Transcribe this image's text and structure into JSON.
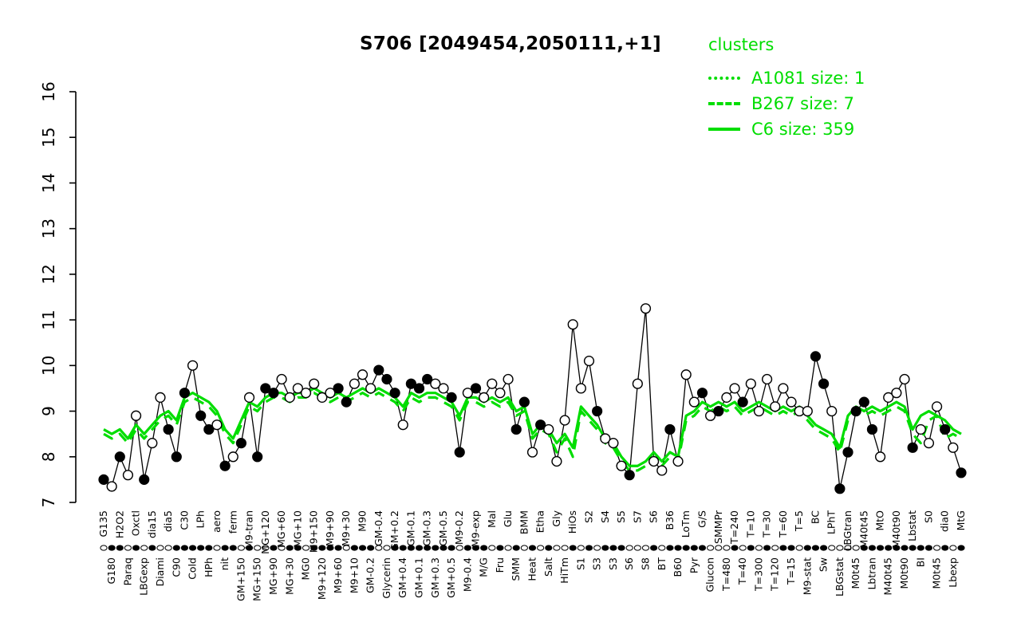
{
  "title": "S706 [2049454,2050111,+1]",
  "legend": {
    "title": "clusters",
    "entries": [
      {
        "label": "A1081 size: 1",
        "style": "dotted"
      },
      {
        "label": "B267 size: 7",
        "style": "dashed"
      },
      {
        "label": "C6 size: 359",
        "style": "solid"
      }
    ]
  },
  "colors": {
    "cluster_green": "#00dd00",
    "gene_black": "#000000",
    "background": "#ffffff"
  },
  "chart_data": {
    "type": "line",
    "title": "S706 [2049454,2050111,+1]",
    "xlabel": "",
    "ylabel": "",
    "ylim": [
      7,
      16
    ],
    "yticks": [
      7,
      8,
      9,
      10,
      11,
      12,
      13,
      14,
      15,
      16
    ],
    "grid": false,
    "legend_position": "top-right",
    "categories": [
      "G135",
      "G180",
      "H2O2",
      "Paraq",
      "Oxctl",
      "LBGexp",
      "dia15",
      "Diami",
      "dia5",
      "C90",
      "C30",
      "Cold",
      "LPh",
      "HPh",
      "aero",
      "nit",
      "ferm",
      "GM+150",
      "M9-tran",
      "MG+150",
      "MG+120",
      "MG+90",
      "MG+60",
      "MG+30",
      "MG+10",
      "MG0",
      "M9+150",
      "M9+120",
      "M9+90",
      "M9+60",
      "M9+30",
      "M9+10",
      "M90",
      "GM-0.2",
      "GM-0.4",
      "Glycerin",
      "GM+0.2",
      "GM+0.4",
      "GM-0.1",
      "GM+0.1",
      "GM-0.3",
      "GM+0.3",
      "GM-0.5",
      "GM+0.5",
      "M9-0.2",
      "M9-0.4",
      "M9-exp",
      "M/G",
      "Mal",
      "Fru",
      "Glu",
      "SMM",
      "BMM",
      "Heat",
      "Etha",
      "Salt",
      "Gly",
      "HiTm",
      "HiOs",
      "S1",
      "S2",
      "S3",
      "S4",
      "S3",
      "S5",
      "S6",
      "S7",
      "S8",
      "S6",
      "BT",
      "B36",
      "B60",
      "LoTm",
      "Pyr",
      "G/S",
      "Glucon",
      "SMMPr",
      "T=480",
      "T=240",
      "T=40",
      "T=10",
      "T=300",
      "T=30",
      "T=120",
      "T=60",
      "T=15",
      "T=5",
      "M9-stat",
      "BC",
      "Sw",
      "LPhT",
      "LBGstat",
      "LBGtran",
      "M0t45",
      "M40t45",
      "Lbtran",
      "MtO",
      "M40t45",
      "M40t90",
      "M0t90",
      "Lbstat",
      "BI",
      "S0",
      "M0t45",
      "dia0",
      "Lbexp",
      "MtG"
    ],
    "series": [
      {
        "name": "S706",
        "role": "gene",
        "color": "#000000",
        "marker": "circle",
        "values": [
          7.5,
          7.35,
          8.0,
          7.6,
          8.9,
          7.5,
          8.3,
          9.3,
          8.6,
          8.0,
          9.4,
          10.0,
          8.9,
          8.6,
          8.7,
          7.8,
          8.0,
          8.3,
          9.3,
          8.0,
          9.5,
          9.4,
          9.7,
          9.3,
          9.5,
          9.4,
          9.6,
          9.3,
          9.4,
          9.5,
          9.2,
          9.6,
          9.8,
          9.5,
          9.9,
          9.7,
          9.4,
          8.7,
          9.6,
          9.5,
          9.7,
          9.6,
          9.5,
          9.3,
          8.1,
          9.4,
          9.5,
          9.3,
          9.6,
          9.4,
          9.7,
          8.6,
          9.2,
          8.1,
          8.7,
          8.6,
          7.9,
          8.8,
          10.9,
          9.5,
          10.1,
          9.0,
          8.4,
          8.3,
          7.8,
          7.6,
          9.6,
          11.25,
          7.9,
          7.7,
          8.6,
          7.9,
          9.8,
          9.2,
          9.4,
          8.9,
          9.0,
          9.3,
          9.5,
          9.2,
          9.6,
          9.0,
          9.7,
          9.1,
          9.5,
          9.2,
          9.0,
          9.0,
          10.2,
          9.6,
          9.0,
          7.3,
          8.1,
          9.0,
          9.2,
          8.6,
          8.0,
          9.3,
          9.4,
          9.7,
          8.2,
          8.6,
          8.3,
          9.1,
          8.6,
          8.2,
          7.65
        ]
      },
      {
        "name": "C6 size: 359",
        "role": "cluster",
        "color": "#00dd00",
        "dash": "solid",
        "values": [
          8.6,
          8.5,
          8.6,
          8.4,
          8.7,
          8.5,
          8.7,
          8.9,
          9.0,
          8.8,
          9.3,
          9.4,
          9.3,
          9.2,
          9.0,
          8.6,
          8.4,
          8.8,
          9.2,
          9.1,
          9.3,
          9.4,
          9.4,
          9.3,
          9.4,
          9.4,
          9.5,
          9.4,
          9.3,
          9.4,
          9.3,
          9.4,
          9.5,
          9.4,
          9.5,
          9.4,
          9.3,
          9.1,
          9.4,
          9.3,
          9.4,
          9.4,
          9.3,
          9.2,
          8.9,
          9.3,
          9.3,
          9.2,
          9.3,
          9.2,
          9.3,
          9.0,
          9.1,
          8.5,
          8.7,
          8.6,
          8.3,
          8.5,
          8.2,
          9.1,
          8.9,
          8.7,
          8.4,
          8.3,
          8.0,
          7.8,
          7.8,
          7.9,
          8.1,
          7.9,
          8.1,
          8.0,
          8.9,
          9.0,
          9.2,
          9.1,
          9.2,
          9.1,
          9.2,
          9.0,
          9.1,
          9.2,
          9.1,
          9.0,
          9.1,
          9.0,
          9.1,
          8.9,
          8.7,
          8.6,
          8.5,
          8.2,
          8.9,
          9.1,
          9.0,
          9.1,
          9.0,
          9.1,
          9.2,
          9.1,
          8.6,
          8.9,
          9.0,
          8.9,
          8.8,
          8.6,
          8.5
        ]
      },
      {
        "name": "B267 size: 7",
        "role": "cluster",
        "color": "#00dd00",
        "dash": "dashed",
        "values": [
          8.5,
          8.4,
          8.5,
          8.3,
          8.6,
          8.4,
          8.6,
          8.8,
          8.9,
          8.7,
          9.2,
          9.3,
          9.2,
          9.1,
          8.9,
          8.5,
          8.3,
          8.7,
          9.1,
          9.0,
          9.2,
          9.3,
          9.3,
          9.2,
          9.3,
          9.3,
          9.4,
          9.3,
          9.2,
          9.3,
          9.2,
          9.3,
          9.4,
          9.3,
          9.4,
          9.3,
          9.2,
          9.0,
          9.3,
          9.2,
          9.3,
          9.3,
          9.2,
          9.1,
          8.8,
          9.2,
          9.2,
          9.1,
          9.2,
          9.1,
          9.2,
          8.9,
          9.0,
          8.4,
          8.6,
          8.5,
          8.1,
          8.4,
          8.0,
          9.0,
          8.8,
          8.6,
          8.3,
          8.2,
          7.9,
          7.7,
          7.7,
          7.8,
          8.0,
          7.8,
          8.0,
          7.9,
          8.8,
          8.9,
          9.1,
          9.0,
          9.1,
          9.0,
          9.1,
          8.9,
          9.0,
          9.1,
          9.0,
          8.9,
          9.0,
          8.9,
          9.0,
          8.8,
          8.6,
          8.5,
          8.4,
          8.1,
          8.8,
          9.0,
          8.9,
          9.0,
          8.9,
          9.0,
          9.1,
          9.0,
          8.5,
          8.3,
          8.8,
          8.9,
          8.4,
          8.5,
          8.4
        ]
      },
      {
        "name": "A1081 size: 1",
        "role": "cluster",
        "color": "#00dd00",
        "dash": "dotted",
        "values": null
      }
    ]
  }
}
